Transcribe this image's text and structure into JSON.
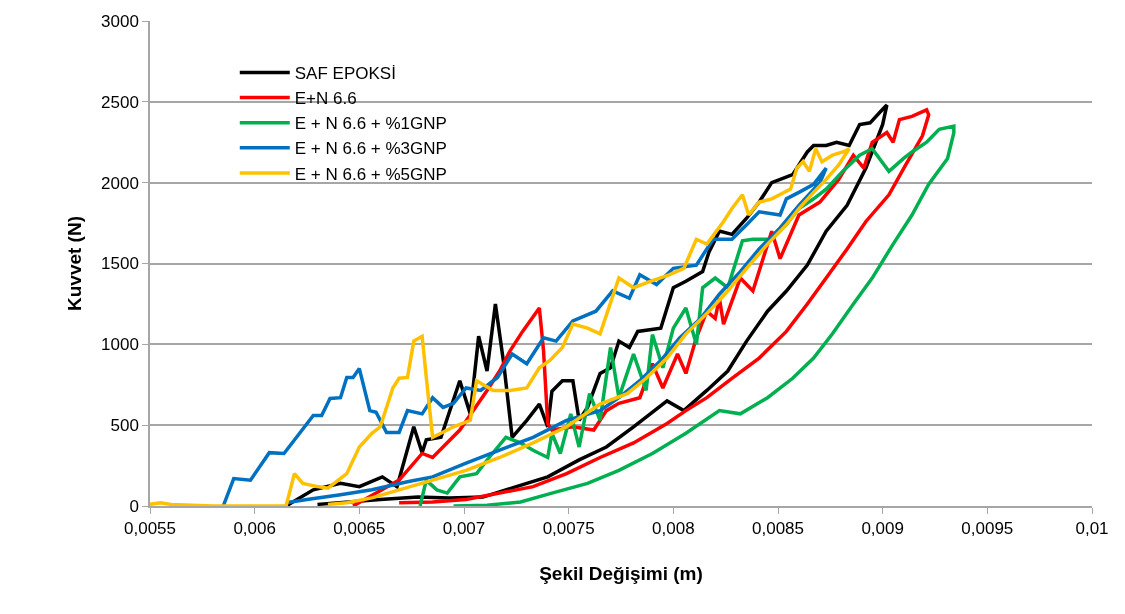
{
  "chart_data": {
    "type": "line",
    "xlabel": "Şekil Değişimi (m)",
    "ylabel": "Kuvvet (N)",
    "xlim": [
      0.0055,
      0.01
    ],
    "xticks": [
      {
        "value": 0.0055,
        "label": "0,0055"
      },
      {
        "value": 0.006,
        "label": "0,006"
      },
      {
        "value": 0.0065,
        "label": "0,0065"
      },
      {
        "value": 0.007,
        "label": "0,007"
      },
      {
        "value": 0.0075,
        "label": "0,0075"
      },
      {
        "value": 0.008,
        "label": "0,008"
      },
      {
        "value": 0.0085,
        "label": "0,0085"
      },
      {
        "value": 0.009,
        "label": "0,009"
      },
      {
        "value": 0.0095,
        "label": "0,0095"
      },
      {
        "value": 0.01,
        "label": "0,01"
      }
    ],
    "ylim": [
      0,
      3000
    ],
    "yticks": [
      0,
      500,
      1000,
      1500,
      2000,
      2500,
      3000
    ],
    "grid": "y",
    "legend": "top left",
    "marker": "none",
    "line_style": "solid",
    "series": [
      {
        "name": "SAF EPOKSİ",
        "color": "#000000",
        "x": [
          0.00615,
          0.00628,
          0.00641,
          0.0065,
          0.00661,
          0.00668,
          0.00676,
          0.0068,
          0.00682,
          0.00689,
          0.00698,
          0.00703,
          0.00707,
          0.00711,
          0.00715,
          0.00719,
          0.00723,
          0.0073,
          0.00736,
          0.0074,
          0.00742,
          0.00747,
          0.00752,
          0.00755,
          0.00759,
          0.00765,
          0.0077,
          0.00774,
          0.00779,
          0.00783,
          0.00794,
          0.008,
          0.00806,
          0.00814,
          0.00817,
          0.00822,
          0.00828,
          0.00835,
          0.00841,
          0.00847,
          0.00857,
          0.00864,
          0.00867,
          0.00873,
          0.00878,
          0.00884,
          0.00889,
          0.00894,
          0.00899,
          0.00902,
          0.009,
          0.00892,
          0.00883,
          0.00873,
          0.00864,
          0.00854,
          0.00845,
          0.00835,
          0.00826,
          0.00816,
          0.00805,
          0.00797,
          0.00781,
          0.00768,
          0.00755,
          0.0074,
          0.00725,
          0.00709,
          0.00693,
          0.00678,
          0.0066,
          0.0063
        ],
        "values": [
          0,
          100,
          140,
          120,
          180,
          120,
          490,
          330,
          410,
          425,
          775,
          570,
          1050,
          835,
          1250,
          880,
          425,
          530,
          630,
          490,
          710,
          775,
          775,
          530,
          610,
          820,
          855,
          1020,
          980,
          1080,
          1100,
          1350,
          1390,
          1450,
          1570,
          1700,
          1680,
          1780,
          1880,
          2000,
          2050,
          2190,
          2230,
          2230,
          2250,
          2230,
          2360,
          2370,
          2440,
          2480,
          2360,
          2090,
          1860,
          1700,
          1490,
          1330,
          1205,
          1020,
          835,
          715,
          590,
          650,
          490,
          365,
          285,
          180,
          120,
          55,
          50,
          55,
          40,
          10
        ]
      },
      {
        "name": "E+N 6.6",
        "color": "#ff0000",
        "x": [
          0.00647,
          0.00669,
          0.0068,
          0.00685,
          0.00698,
          0.00711,
          0.00717,
          0.00722,
          0.00728,
          0.00736,
          0.00738,
          0.0074,
          0.00742,
          0.00752,
          0.00762,
          0.00768,
          0.00774,
          0.00784,
          0.0079,
          0.00795,
          0.00802,
          0.00806,
          0.00811,
          0.00816,
          0.0082,
          0.00822,
          0.00824,
          0.00832,
          0.00838,
          0.00847,
          0.00851,
          0.0086,
          0.0087,
          0.00879,
          0.00886,
          0.00891,
          0.00895,
          0.00902,
          0.00905,
          0.00908,
          0.00914,
          0.00921,
          0.00922,
          0.00919,
          0.00911,
          0.00903,
          0.00892,
          0.00883,
          0.00873,
          0.00864,
          0.00854,
          0.00841,
          0.00828,
          0.00816,
          0.00806,
          0.00797,
          0.00781,
          0.00765,
          0.00749,
          0.00733,
          0.00717,
          0.00701,
          0.00685,
          0.00669
        ],
        "values": [
          0,
          160,
          325,
          300,
          470,
          715,
          835,
          960,
          1080,
          1225,
          960,
          510,
          470,
          490,
          470,
          590,
          635,
          670,
          880,
          730,
          940,
          820,
          1040,
          1205,
          1160,
          1285,
          1125,
          1410,
          1330,
          1700,
          1530,
          1800,
          1880,
          2020,
          2170,
          2090,
          2250,
          2310,
          2250,
          2390,
          2410,
          2450,
          2420,
          2290,
          2110,
          1925,
          1760,
          1590,
          1410,
          1250,
          1080,
          915,
          790,
          670,
          590,
          510,
          390,
          300,
          200,
          120,
          80,
          40,
          25,
          20
        ]
      },
      {
        "name": "E + N 6.6 + %1GNP",
        "color": "#00b050",
        "x": [
          0.00679,
          0.00682,
          0.00687,
          0.00692,
          0.00698,
          0.00706,
          0.00712,
          0.0072,
          0.00727,
          0.00733,
          0.0074,
          0.00742,
          0.00746,
          0.00751,
          0.00755,
          0.0076,
          0.00765,
          0.0077,
          0.00774,
          0.00781,
          0.00787,
          0.0079,
          0.00795,
          0.008,
          0.00806,
          0.00811,
          0.00814,
          0.0082,
          0.00826,
          0.00833,
          0.00838,
          0.00847,
          0.00854,
          0.0086,
          0.00867,
          0.00873,
          0.00881,
          0.00889,
          0.00895,
          0.00903,
          0.0091,
          0.00914,
          0.00921,
          0.00927,
          0.00934,
          0.00934,
          0.00931,
          0.00922,
          0.00914,
          0.00905,
          0.00895,
          0.00886,
          0.00876,
          0.00867,
          0.00857,
          0.00845,
          0.00832,
          0.00822,
          0.00806,
          0.0079,
          0.00774,
          0.00759,
          0.00742,
          0.00727,
          0.00711,
          0.00695
        ],
        "values": [
          0,
          160,
          100,
          80,
          180,
          200,
          300,
          425,
          390,
          345,
          300,
          450,
          325,
          570,
          365,
          695,
          530,
          980,
          670,
          940,
          715,
          1060,
          855,
          1100,
          1225,
          1000,
          1350,
          1410,
          1350,
          1640,
          1650,
          1650,
          1740,
          1840,
          1900,
          1960,
          2070,
          2170,
          2210,
          2070,
          2150,
          2190,
          2250,
          2330,
          2350,
          2310,
          2150,
          1990,
          1800,
          1620,
          1410,
          1250,
          1065,
          915,
          790,
          670,
          570,
          590,
          450,
          325,
          220,
          140,
          80,
          25,
          5,
          0
        ]
      },
      {
        "name": "E + N 6.6 + %3GNP",
        "color": "#0070c0",
        "x": [
          0.00585,
          0.0059,
          0.00598,
          0.00607,
          0.00614,
          0.0062,
          0.00628,
          0.00632,
          0.00636,
          0.00641,
          0.00644,
          0.00647,
          0.0065,
          0.00655,
          0.00658,
          0.00663,
          0.00669,
          0.00673,
          0.0068,
          0.00685,
          0.0069,
          0.00695,
          0.00701,
          0.00708,
          0.00716,
          0.00723,
          0.0073,
          0.00738,
          0.00744,
          0.00752,
          0.00763,
          0.00771,
          0.00779,
          0.00784,
          0.00792,
          0.008,
          0.00811,
          0.00819,
          0.00828,
          0.00835,
          0.00841,
          0.00851,
          0.00854,
          0.0086,
          0.00867,
          0.00873,
          0.0087,
          0.0086,
          0.00851,
          0.00841,
          0.00832,
          0.00822,
          0.00813,
          0.00803,
          0.00794,
          0.00784,
          0.00774,
          0.00765,
          0.00749,
          0.00733,
          0.00717,
          0.00701,
          0.00685,
          0.00673,
          0.00656,
          0.00641,
          0.00625,
          0.00615
        ],
        "values": [
          0,
          170,
          160,
          330,
          325,
          425,
          560,
          560,
          665,
          670,
          795,
          795,
          850,
          590,
          580,
          455,
          455,
          590,
          570,
          670,
          610,
          635,
          730,
          715,
          795,
          940,
          880,
          1040,
          1020,
          1145,
          1205,
          1330,
          1285,
          1430,
          1370,
          1470,
          1490,
          1650,
          1650,
          1740,
          1820,
          1800,
          1900,
          1940,
          1990,
          2090,
          2000,
          1860,
          1720,
          1590,
          1450,
          1310,
          1160,
          1040,
          900,
          775,
          670,
          590,
          530,
          425,
          345,
          265,
          180,
          150,
          100,
          70,
          40,
          20
        ]
      },
      {
        "name": "E + N 6.6 + %5GNP",
        "color": "#ffc000",
        "x": [
          0.0055,
          0.00555,
          0.0056,
          0.0058,
          0.00615,
          0.00619,
          0.00623,
          0.0063,
          0.00635,
          0.00644,
          0.0065,
          0.00656,
          0.0066,
          0.00666,
          0.00669,
          0.00673,
          0.00676,
          0.0068,
          0.00682,
          0.00685,
          0.00689,
          0.00695,
          0.00703,
          0.00706,
          0.00714,
          0.00722,
          0.0073,
          0.00736,
          0.00741,
          0.00747,
          0.00752,
          0.00759,
          0.00765,
          0.00774,
          0.00781,
          0.00789,
          0.00798,
          0.00805,
          0.00811,
          0.00816,
          0.00824,
          0.00828,
          0.00833,
          0.00836,
          0.00841,
          0.00847,
          0.00856,
          0.00859,
          0.00862,
          0.00865,
          0.00868,
          0.00871,
          0.00876,
          0.00881,
          0.00884,
          0.00879,
          0.00873,
          0.00867,
          0.0086,
          0.00854,
          0.00845,
          0.00835,
          0.00826,
          0.00816,
          0.00806,
          0.00797,
          0.00787,
          0.00778,
          0.00765,
          0.00749,
          0.00733,
          0.00717,
          0.00701,
          0.00685,
          0.00669,
          0.00656,
          0.00644,
          0.00635
        ],
        "values": [
          10,
          20,
          10,
          0,
          0,
          200,
          140,
          120,
          110,
          200,
          365,
          450,
          490,
          730,
          790,
          795,
          1020,
          1050,
          795,
          425,
          450,
          490,
          530,
          775,
          715,
          715,
          730,
          855,
          900,
          980,
          1125,
          1100,
          1065,
          1410,
          1350,
          1390,
          1430,
          1470,
          1650,
          1620,
          1760,
          1840,
          1925,
          1800,
          1880,
          1900,
          1960,
          2090,
          2130,
          2070,
          2210,
          2130,
          2170,
          2190,
          2210,
          2110,
          2020,
          1940,
          1840,
          1740,
          1620,
          1470,
          1330,
          1190,
          1065,
          915,
          790,
          695,
          630,
          490,
          390,
          300,
          220,
          160,
          100,
          50,
          20,
          10
        ]
      }
    ]
  }
}
